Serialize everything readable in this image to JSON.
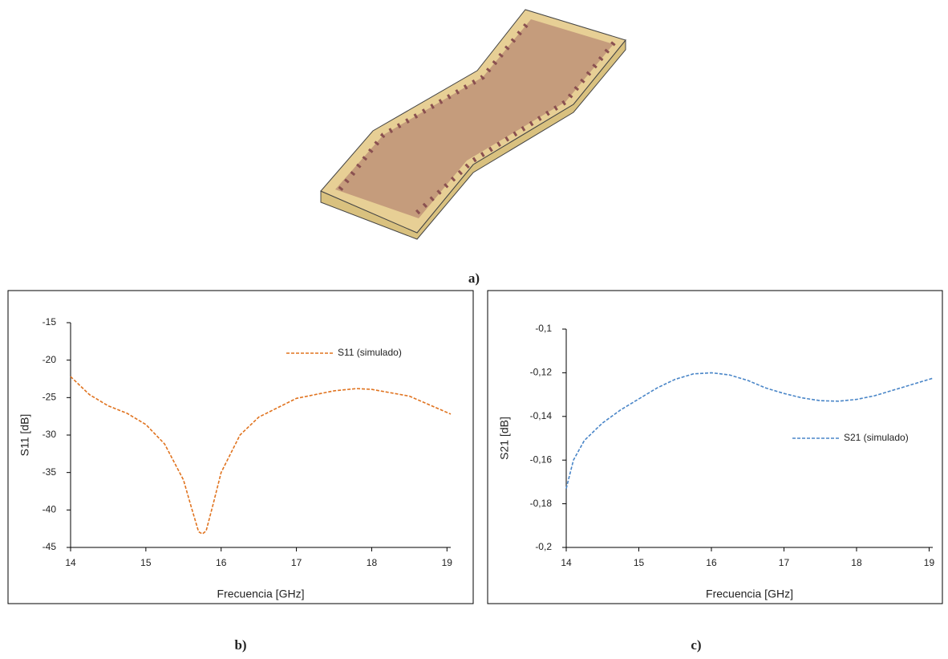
{
  "image_label": "a)",
  "chart_data": [
    {
      "type": "line",
      "panel_label": "b)",
      "xlabel": "Frecuencia [GHz]",
      "ylabel": "S11 [dB]",
      "x": [
        14,
        14.25,
        14.5,
        14.75,
        15,
        15.25,
        15.5,
        15.6,
        15.7,
        15.75,
        15.8,
        15.9,
        16,
        16.25,
        16.5,
        17,
        17.5,
        17.8,
        18,
        18.5,
        19.05
      ],
      "series": [
        {
          "name": "S11 (simulado)",
          "color": "#e0731f",
          "values": [
            -22.2,
            -24.6,
            -26.1,
            -27.1,
            -28.6,
            -31.2,
            -36,
            -39.5,
            -42.9,
            -43.2,
            -42.8,
            -39,
            -35,
            -30,
            -27.6,
            -25.1,
            -24.1,
            -23.8,
            -23.9,
            -24.8,
            -27.2
          ]
        }
      ],
      "xlim": [
        14,
        19.05
      ],
      "ylim": [
        -45,
        -15
      ],
      "xticks": [
        14,
        15,
        16,
        17,
        18,
        19
      ],
      "yticks": [
        -45,
        -40,
        -35,
        -30,
        -25,
        -20,
        -15
      ],
      "legend": "upper right"
    },
    {
      "type": "line",
      "panel_label": "c)",
      "xlabel": "Frecuencia [GHz]",
      "ylabel": "S21 [dB]",
      "x": [
        14,
        14.1,
        14.25,
        14.5,
        14.75,
        15,
        15.25,
        15.5,
        15.75,
        16,
        16.25,
        16.5,
        16.75,
        17,
        17.25,
        17.5,
        17.75,
        18,
        18.25,
        18.5,
        18.75,
        19.05
      ],
      "series": [
        {
          "name": "S21 (simulado)",
          "color": "#4a86c8",
          "values": [
            -0.173,
            -0.16,
            -0.151,
            -0.143,
            -0.137,
            -0.132,
            -0.127,
            -0.123,
            -0.1205,
            -0.12,
            -0.121,
            -0.1235,
            -0.127,
            -0.1295,
            -0.1315,
            -0.1328,
            -0.133,
            -0.1322,
            -0.1305,
            -0.128,
            -0.1255,
            -0.1225
          ]
        }
      ],
      "xlim": [
        14,
        19.05
      ],
      "ylim": [
        -0.2,
        -0.1
      ],
      "xticks": [
        14,
        15,
        16,
        17,
        18,
        19
      ],
      "yticks": [
        {
          "value": -0.2,
          "label": "-0,2"
        },
        {
          "value": -0.18,
          "label": "-0,18"
        },
        {
          "value": -0.16,
          "label": "-0,16"
        },
        {
          "value": -0.14,
          "label": "-0,14"
        },
        {
          "value": -0.12,
          "label": "-0,12"
        },
        {
          "value": -0.1,
          "label": "-0,1"
        }
      ],
      "legend": "center right"
    }
  ]
}
